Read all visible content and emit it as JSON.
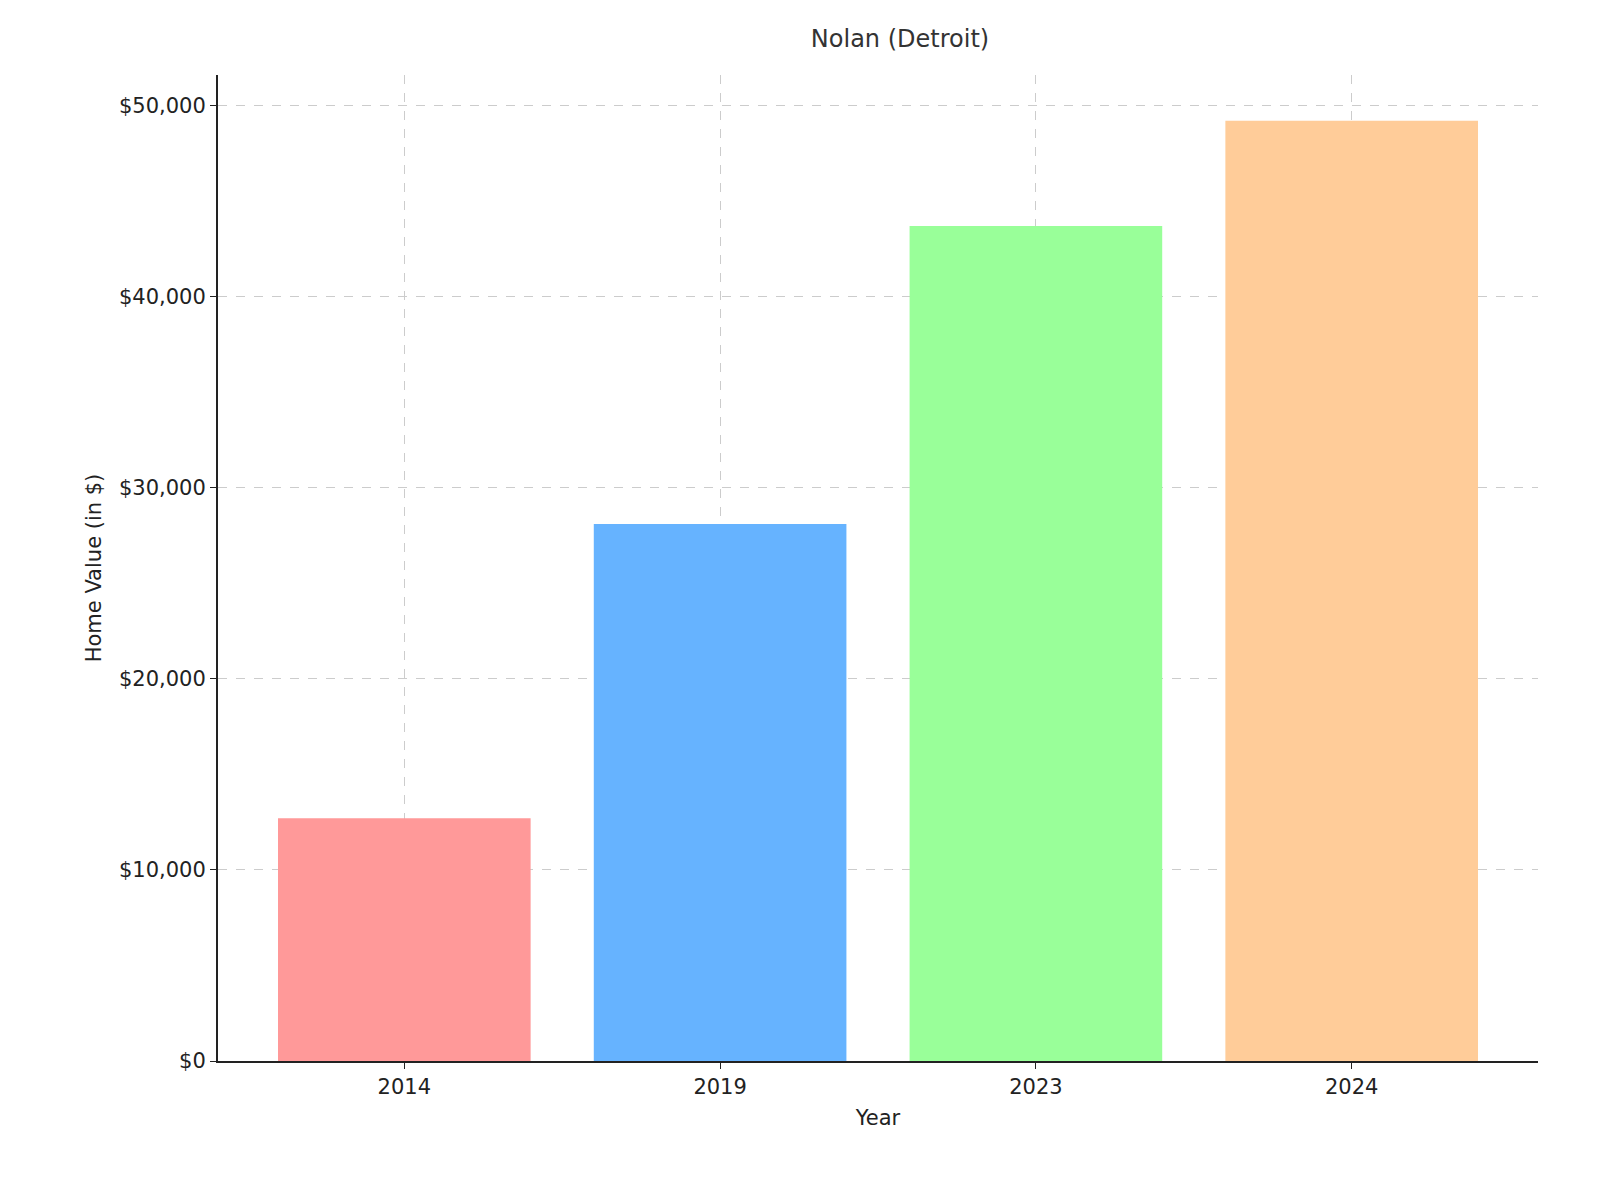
{
  "chart_data": {
    "type": "bar",
    "title": "Nolan (Detroit)",
    "x_label": "Year",
    "y_label": "Home Value (in $)",
    "categories": [
      "2014",
      "2019",
      "2023",
      "2024"
    ],
    "values": [
      12700,
      28100,
      43700,
      49200
    ],
    "colors": [
      "#ff9999",
      "#66b3ff",
      "#99ff99",
      "#ffcc99"
    ],
    "ylim": [
      0,
      51600
    ],
    "yticks": [
      {
        "value": 0,
        "label": "$0"
      },
      {
        "value": 10000,
        "label": "$10,000"
      },
      {
        "value": 20000,
        "label": "$20,000"
      },
      {
        "value": 30000,
        "label": "$30,000"
      },
      {
        "value": 40000,
        "label": "$40,000"
      },
      {
        "value": 50000,
        "label": "$50,000"
      }
    ],
    "grid": true
  }
}
